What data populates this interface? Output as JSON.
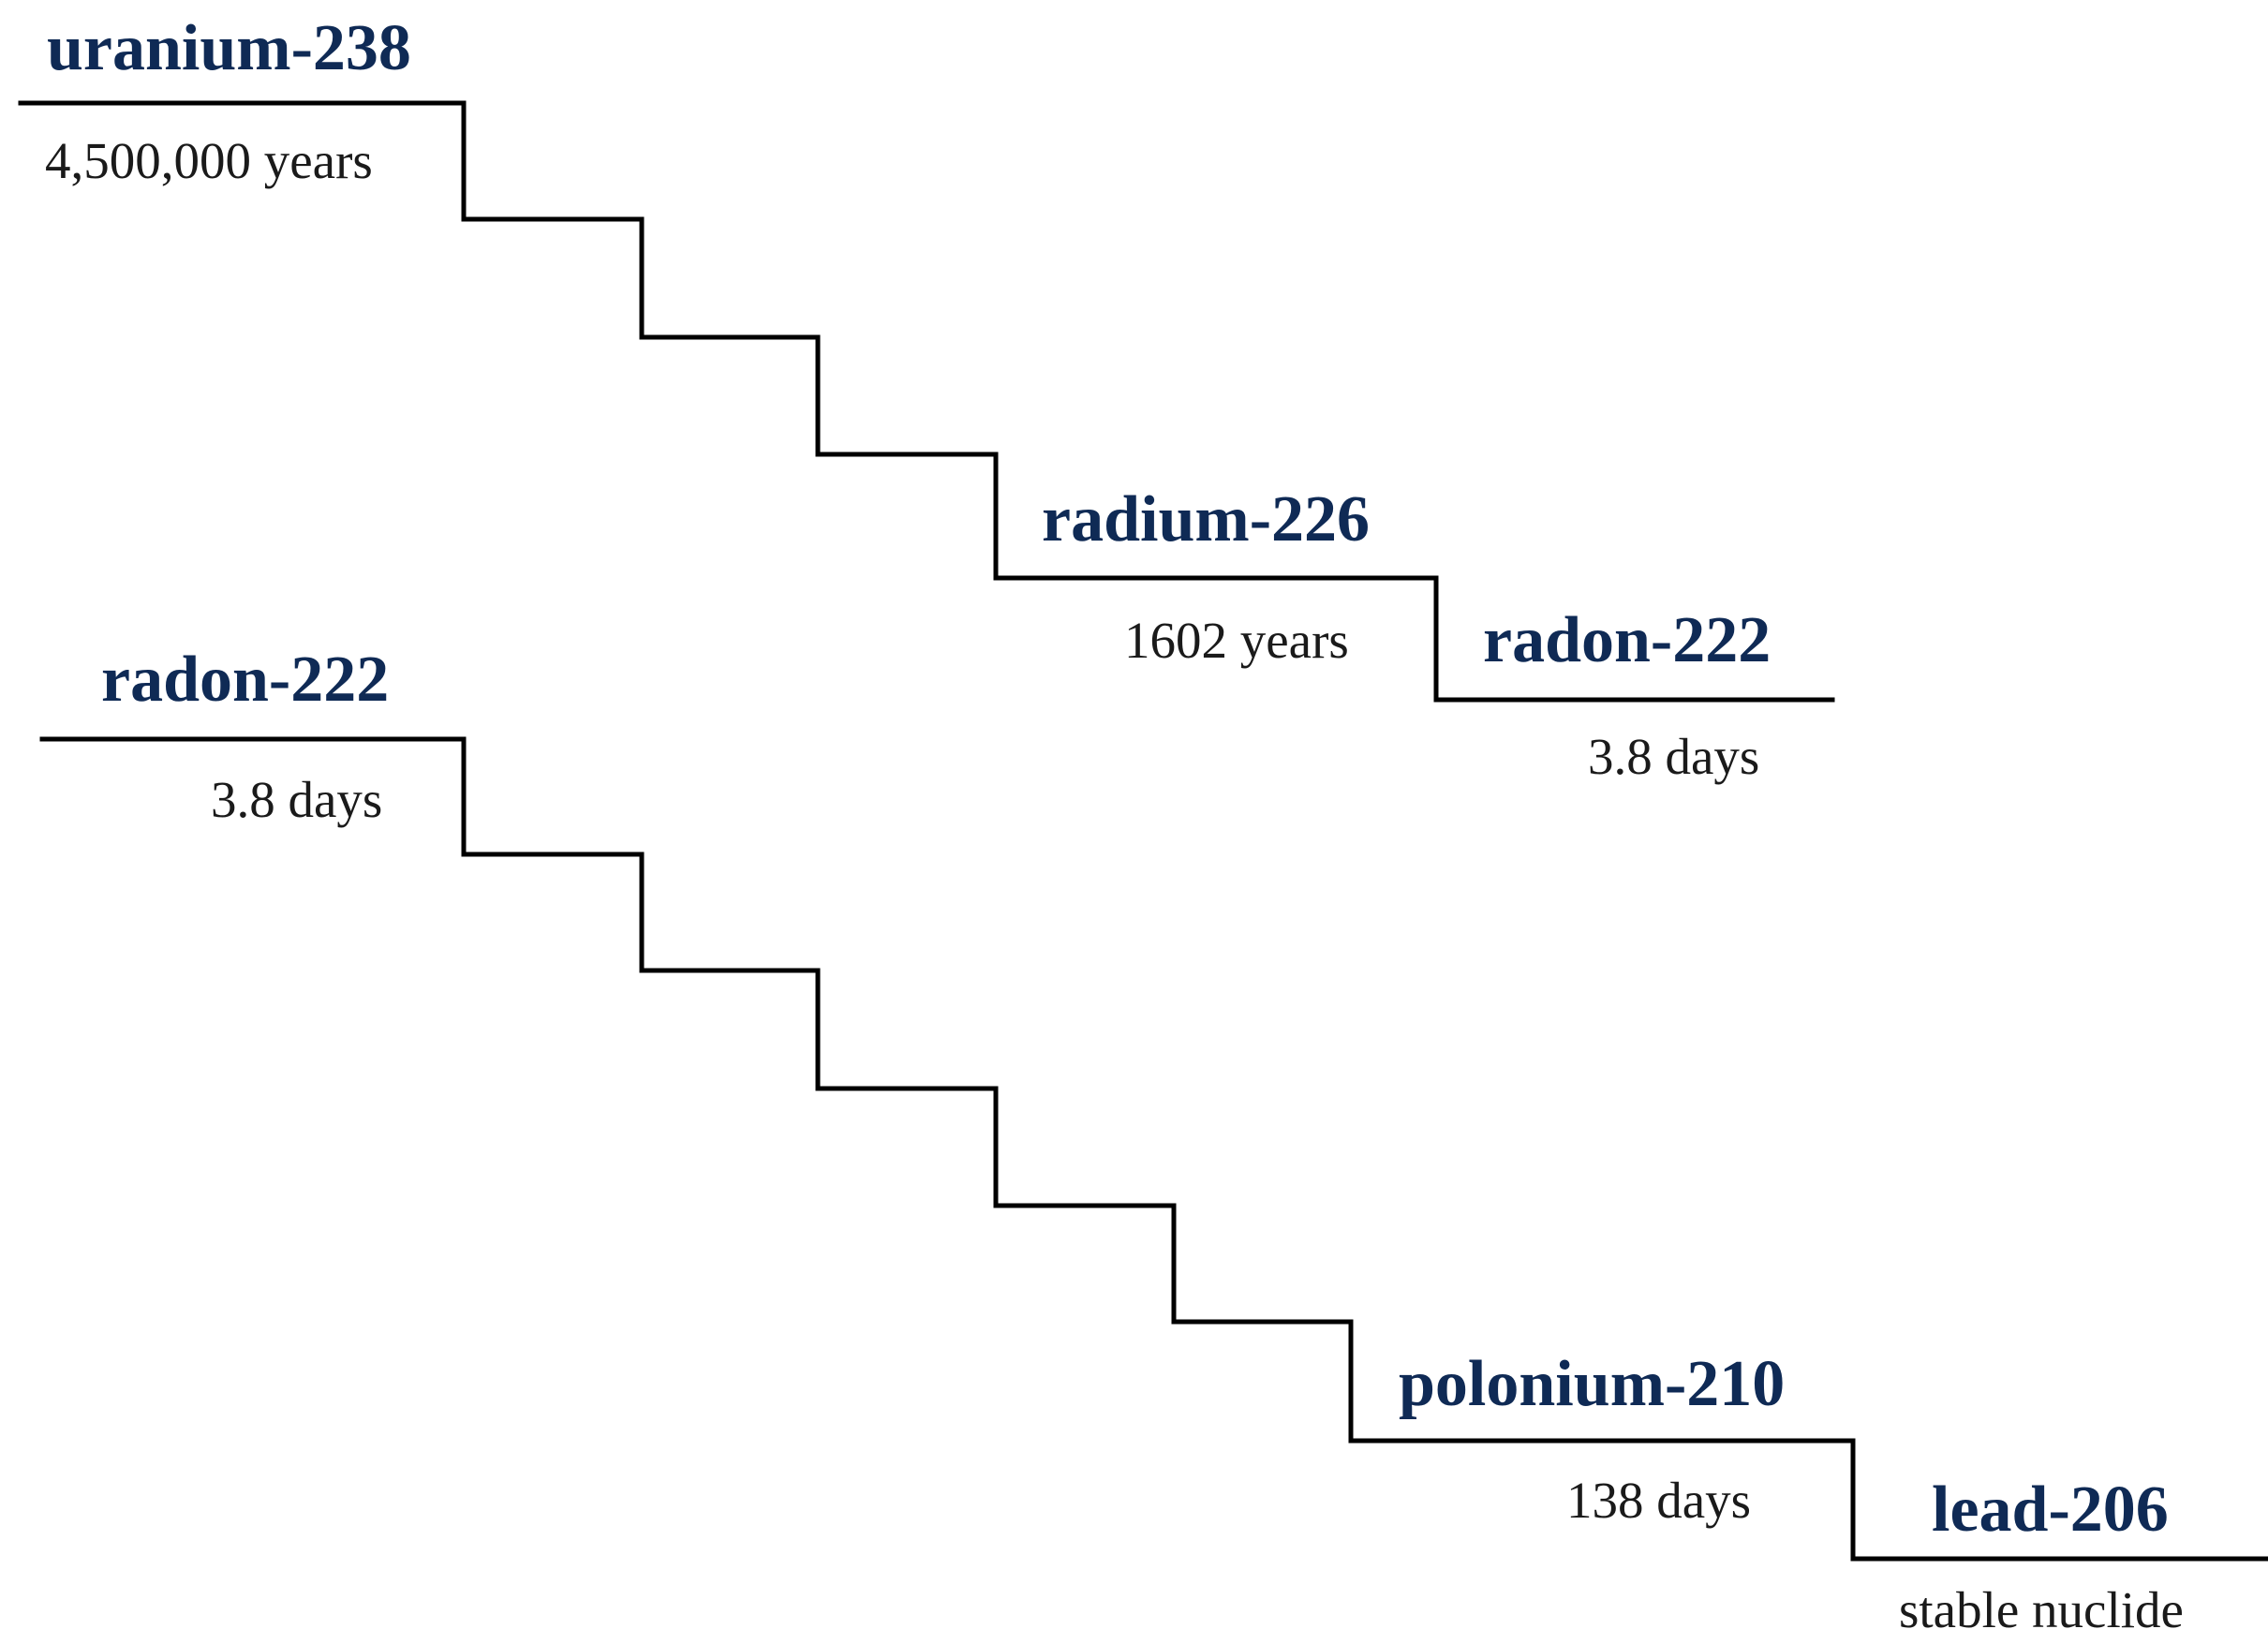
{
  "colors": {
    "nuclide_name": "#0f2a55",
    "half_life": "#1a1a1a",
    "line": "#000000",
    "background": "#ffffff"
  },
  "upper_chain": {
    "start": {
      "name": "uranium-238",
      "half_life": "4,500,000 years"
    },
    "middle": {
      "name": "radium-226",
      "half_life": "1602 years"
    },
    "end": {
      "name": "radon-222",
      "half_life": "3.8 days"
    }
  },
  "lower_chain": {
    "start": {
      "name": "radon-222",
      "half_life": "3.8 days"
    },
    "middle": {
      "name": "polonium-210",
      "half_life": "138 days"
    },
    "end": {
      "name": "lead-206",
      "half_life": "stable nuclide"
    }
  }
}
